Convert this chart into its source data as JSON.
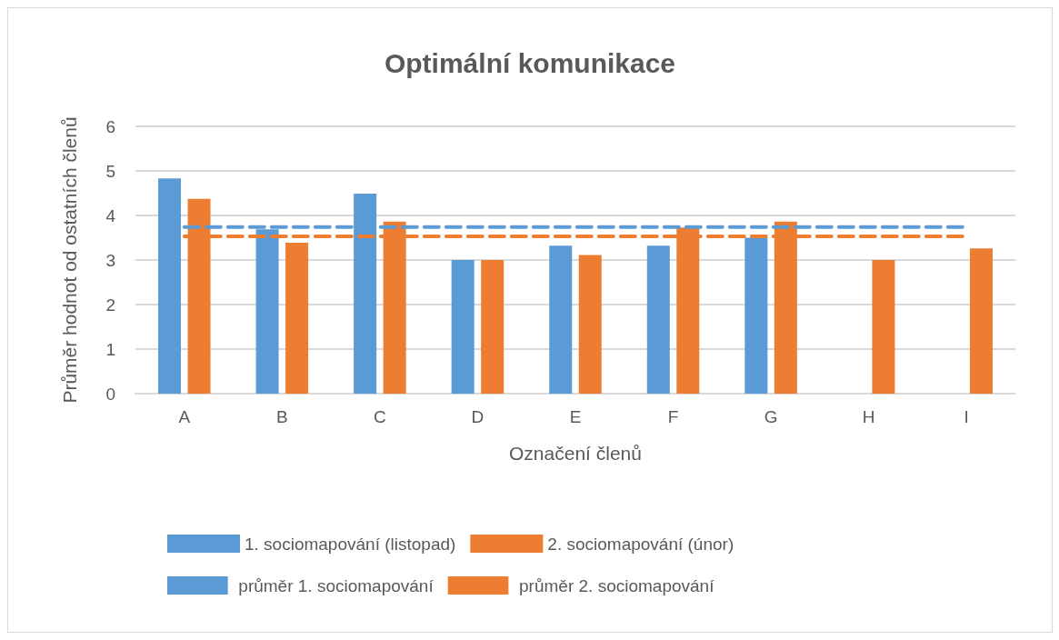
{
  "chart_data": {
    "type": "bar",
    "title": "Optimální komunikace",
    "xlabel": "Označení členů",
    "ylabel": "Průměr hodnot od ostatních členů",
    "categories": [
      "A",
      "B",
      "C",
      "D",
      "E",
      "F",
      "G",
      "H",
      "I"
    ],
    "series": [
      {
        "name": "1. sociomapování (listopad)",
        "color": "#5b9bd5",
        "values": [
          4.83,
          3.69,
          4.49,
          3.0,
          3.32,
          3.32,
          3.5,
          null,
          null
        ]
      },
      {
        "name": "2. sociomapování (únor)",
        "color": "#ed7d31",
        "values": [
          4.37,
          3.39,
          3.86,
          3.0,
          3.11,
          3.73,
          3.86,
          3.0,
          3.26
        ]
      },
      {
        "name": "průměr 1. sociomapování",
        "type": "line",
        "line_style": "dashed",
        "color": "#5b9bd5",
        "values": [
          3.74,
          3.74,
          3.74,
          3.74,
          3.74,
          3.74,
          3.74,
          3.74,
          3.74
        ]
      },
      {
        "name": "průměr 2. sociomapování",
        "type": "line",
        "line_style": "dashed",
        "color": "#ed7d31",
        "values": [
          3.53,
          3.53,
          3.53,
          3.53,
          3.53,
          3.53,
          3.53,
          3.53,
          3.53
        ]
      }
    ],
    "ylim": [
      0,
      6
    ],
    "yticks": [
      0,
      1,
      2,
      3,
      4,
      5,
      6
    ],
    "grid": "y",
    "legend": "bottom",
    "marker": "none"
  }
}
